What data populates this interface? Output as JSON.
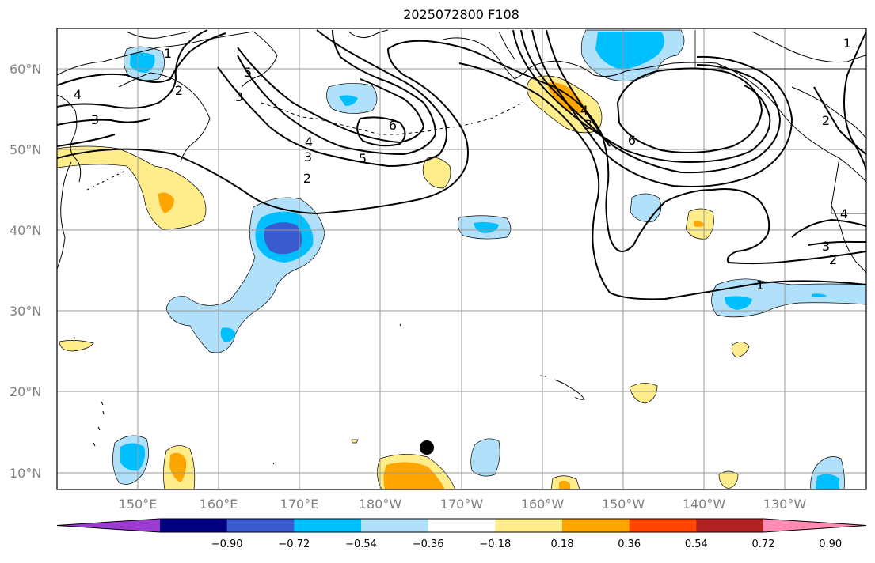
{
  "title": "2025072800 F108",
  "lat_labels": [
    "60°N",
    "50°N",
    "40°N",
    "30°N",
    "20°N",
    "10°N"
  ],
  "lon_labels": [
    "150°E",
    "160°E",
    "170°E",
    "180°W",
    "170°W",
    "160°W",
    "150°W",
    "140°W",
    "130°W"
  ],
  "colorbar": {
    "ticks": [
      "−0.90",
      "−0.72",
      "−0.54",
      "−0.36",
      "−0.18",
      "0.18",
      "0.36",
      "0.54",
      "0.72",
      "0.90"
    ],
    "colors": [
      "#9b3bd2",
      "#000080",
      "#3a5bcf",
      "#00bfff",
      "#b0e0fa",
      "#ffffff",
      "#ffec8b",
      "#ffa500",
      "#ff4500",
      "#b22222",
      "#ff8ab4"
    ]
  },
  "contour_labels": [
    "1",
    "2",
    "3",
    "4",
    "5",
    "6"
  ],
  "colors": {
    "contour": "#000000",
    "grid": "#999999",
    "coast": "#000000"
  },
  "marker": "storm-center-dot"
}
